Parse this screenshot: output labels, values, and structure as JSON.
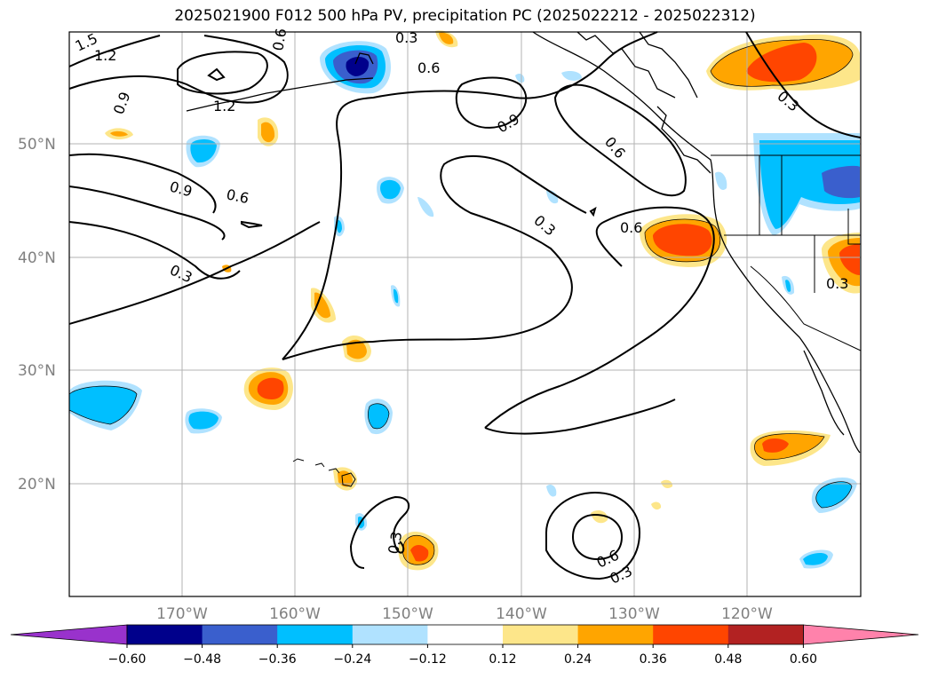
{
  "title": "2025021900 F012 500 hPa PV, precipitation PC (2025022212 - 2025022312)",
  "map": {
    "lat_labels": [
      "50°N",
      "40°N",
      "30°N",
      "20°N"
    ],
    "lon_labels": [
      "170°W",
      "160°W",
      "150°W",
      "140°W",
      "130°W",
      "120°W"
    ],
    "pv_contour_labels": [
      "1.5",
      "1.2",
      "1.2",
      "0.9",
      "0.6",
      "0.9",
      "0.6",
      "0.3",
      "0.6",
      "0.9",
      "0.6",
      "0.3",
      "0.6",
      "0.3",
      "0.3",
      "0.3",
      "0.6",
      "0.3",
      "0.3"
    ]
  },
  "colorbar": {
    "ticks": [
      "−0.60",
      "−0.48",
      "−0.36",
      "−0.24",
      "−0.12",
      "0.12",
      "0.24",
      "0.36",
      "0.48",
      "0.60"
    ],
    "colors": [
      "#9932cc",
      "#00008b",
      "#3a5fcd",
      "#00bfff",
      "#b0e2ff",
      "#ffffff",
      "#fde68a",
      "#ffa500",
      "#ff4500",
      "#b22222",
      "#ff82ab"
    ]
  }
}
